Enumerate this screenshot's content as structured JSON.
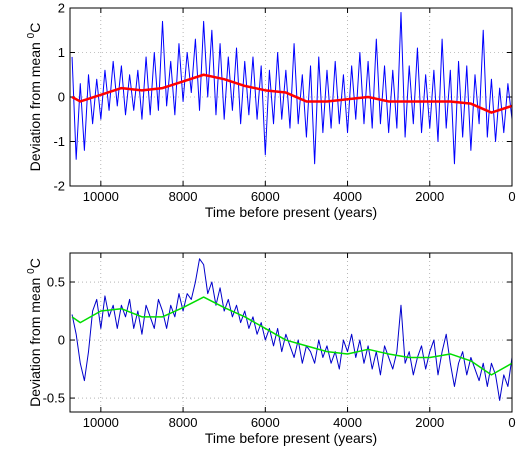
{
  "chart_data": [
    {
      "type": "line",
      "xlabel": "Time before present (years)",
      "ylabel": "Deviation from mean ",
      "ylabel_sup": "0",
      "ylabel_unit": "C",
      "xlim": [
        10750,
        0
      ],
      "xticks": [
        10000,
        8000,
        6000,
        4000,
        2000,
        0
      ],
      "ylim": [
        -2,
        2
      ],
      "yticks": [
        -2,
        -1,
        0,
        1,
        2
      ],
      "grid": true,
      "series": [
        {
          "color": "#0000ff",
          "width": 1,
          "x": [
            10700,
            10600,
            10500,
            10400,
            10300,
            10200,
            10100,
            10000,
            9900,
            9800,
            9700,
            9600,
            9500,
            9400,
            9300,
            9200,
            9100,
            9000,
            8900,
            8800,
            8700,
            8600,
            8500,
            8400,
            8300,
            8200,
            8100,
            8000,
            7900,
            7800,
            7700,
            7600,
            7500,
            7400,
            7300,
            7200,
            7100,
            7000,
            6900,
            6800,
            6700,
            6600,
            6500,
            6400,
            6300,
            6200,
            6100,
            6000,
            5900,
            5800,
            5700,
            5600,
            5500,
            5400,
            5300,
            5200,
            5100,
            5000,
            4900,
            4800,
            4700,
            4600,
            4500,
            4400,
            4300,
            4200,
            4100,
            4000,
            3900,
            3800,
            3700,
            3600,
            3500,
            3400,
            3300,
            3200,
            3100,
            3000,
            2900,
            2800,
            2700,
            2600,
            2500,
            2400,
            2300,
            2200,
            2100,
            2000,
            1900,
            1800,
            1700,
            1600,
            1500,
            1400,
            1300,
            1200,
            1100,
            1000,
            900,
            800,
            700,
            600,
            500,
            400,
            300,
            200,
            100,
            0
          ],
          "values": [
            0.9,
            -1.4,
            0.3,
            -1.2,
            0.5,
            -0.6,
            0.4,
            -0.5,
            0.6,
            -0.3,
            0.8,
            -0.2,
            0.7,
            -0.4,
            0.5,
            -0.3,
            0.6,
            -0.5,
            0.9,
            -0.4,
            1.0,
            -0.3,
            1.7,
            -0.2,
            0.8,
            -0.4,
            1.2,
            -0.1,
            1.0,
            0.1,
            1.3,
            -0.3,
            1.7,
            0.0,
            1.5,
            -0.4,
            1.2,
            -0.5,
            0.9,
            -0.3,
            1.1,
            -0.6,
            0.8,
            -0.4,
            0.9,
            -0.5,
            0.7,
            -1.3,
            0.6,
            -0.6,
            1.0,
            -0.5,
            0.6,
            -0.7,
            1.2,
            -0.6,
            0.5,
            -0.9,
            0.7,
            -1.5,
            0.9,
            -0.8,
            0.6,
            -0.7,
            0.8,
            -0.6,
            0.5,
            -0.8,
            0.7,
            -0.5,
            1.0,
            -0.6,
            0.8,
            -0.7,
            1.3,
            -0.6,
            0.7,
            -0.8,
            0.6,
            -0.7,
            1.9,
            -0.9,
            0.7,
            -0.6,
            1.1,
            -0.8,
            0.5,
            -0.7,
            0.6,
            -1.0,
            1.3,
            -0.7,
            0.6,
            -1.5,
            0.8,
            -0.9,
            0.7,
            -1.2,
            0.5,
            -0.6,
            1.5,
            -0.9,
            0.4,
            -1.0,
            0.2,
            -0.8,
            0.3,
            -0.5
          ]
        },
        {
          "color": "#ff0000",
          "width": 2.5,
          "x": [
            10700,
            10500,
            10000,
            9500,
            9000,
            8500,
            8000,
            7500,
            7000,
            6500,
            6000,
            5500,
            5000,
            4500,
            4000,
            3500,
            3000,
            2500,
            2000,
            1500,
            1000,
            500,
            0
          ],
          "values": [
            0.0,
            -0.1,
            0.05,
            0.2,
            0.15,
            0.2,
            0.35,
            0.5,
            0.4,
            0.25,
            0.15,
            0.1,
            -0.1,
            -0.1,
            -0.05,
            0.0,
            -0.1,
            -0.1,
            -0.1,
            -0.1,
            -0.15,
            -0.35,
            -0.2
          ]
        }
      ]
    },
    {
      "type": "line",
      "xlabel": "Time before present (years)",
      "ylabel": "Deviation from mean ",
      "ylabel_sup": "0",
      "ylabel_unit": "C",
      "xlim": [
        10750,
        0
      ],
      "xticks": [
        10000,
        8000,
        6000,
        4000,
        2000,
        0
      ],
      "ylim": [
        -0.62,
        0.75
      ],
      "yticks": [
        -0.5,
        0,
        0.5
      ],
      "grid": true,
      "series": [
        {
          "color": "#0000cc",
          "width": 1,
          "x": [
            10700,
            10600,
            10500,
            10400,
            10300,
            10200,
            10100,
            10000,
            9900,
            9800,
            9700,
            9600,
            9500,
            9400,
            9300,
            9200,
            9100,
            9000,
            8900,
            8800,
            8700,
            8600,
            8500,
            8400,
            8300,
            8200,
            8100,
            8000,
            7900,
            7800,
            7700,
            7600,
            7500,
            7400,
            7300,
            7200,
            7100,
            7000,
            6900,
            6800,
            6700,
            6600,
            6500,
            6400,
            6300,
            6200,
            6100,
            6000,
            5900,
            5800,
            5700,
            5600,
            5500,
            5400,
            5300,
            5200,
            5100,
            5000,
            4900,
            4800,
            4700,
            4600,
            4500,
            4400,
            4300,
            4200,
            4100,
            4000,
            3900,
            3800,
            3700,
            3600,
            3500,
            3400,
            3300,
            3200,
            3100,
            3000,
            2900,
            2800,
            2700,
            2600,
            2500,
            2400,
            2300,
            2200,
            2100,
            2000,
            1900,
            1800,
            1700,
            1600,
            1500,
            1400,
            1300,
            1200,
            1100,
            1000,
            900,
            800,
            700,
            600,
            500,
            400,
            300,
            200,
            100,
            0
          ],
          "values": [
            0.22,
            0.05,
            -0.2,
            -0.35,
            -0.1,
            0.25,
            0.35,
            0.1,
            0.38,
            0.2,
            0.3,
            0.1,
            0.3,
            0.2,
            0.35,
            0.1,
            0.25,
            0.05,
            0.3,
            0.2,
            0.1,
            0.35,
            0.25,
            0.1,
            0.3,
            0.2,
            0.4,
            0.25,
            0.4,
            0.35,
            0.5,
            0.7,
            0.65,
            0.4,
            0.5,
            0.3,
            0.45,
            0.25,
            0.35,
            0.2,
            0.3,
            0.15,
            0.25,
            0.1,
            0.2,
            0.05,
            0.15,
            0.0,
            0.1,
            -0.05,
            0.1,
            -0.1,
            0.05,
            -0.05,
            -0.15,
            0.0,
            -0.2,
            -0.05,
            -0.1,
            -0.2,
            0.0,
            -0.15,
            -0.05,
            -0.2,
            -0.1,
            -0.25,
            0.0,
            -0.1,
            0.05,
            -0.15,
            0.0,
            -0.2,
            -0.05,
            -0.25,
            -0.1,
            -0.3,
            -0.05,
            -0.15,
            -0.25,
            -0.1,
            0.3,
            -0.2,
            -0.1,
            -0.3,
            -0.15,
            -0.05,
            -0.25,
            -0.1,
            0.0,
            -0.3,
            -0.1,
            0.05,
            -0.2,
            -0.4,
            -0.2,
            -0.1,
            -0.3,
            -0.15,
            -0.25,
            -0.35,
            -0.2,
            -0.4,
            -0.2,
            -0.3,
            -0.52,
            -0.3,
            -0.4,
            -0.15
          ]
        },
        {
          "color": "#00dd00",
          "width": 1.5,
          "x": [
            10700,
            10500,
            10000,
            9500,
            9000,
            8500,
            8000,
            7500,
            7000,
            6500,
            6000,
            5500,
            5000,
            4500,
            4000,
            3500,
            3000,
            2500,
            2000,
            1500,
            1000,
            500,
            0
          ],
          "values": [
            0.2,
            0.15,
            0.25,
            0.27,
            0.2,
            0.2,
            0.28,
            0.37,
            0.28,
            0.2,
            0.1,
            0.0,
            -0.05,
            -0.1,
            -0.12,
            -0.08,
            -0.12,
            -0.15,
            -0.15,
            -0.12,
            -0.18,
            -0.3,
            -0.2
          ]
        }
      ]
    }
  ]
}
